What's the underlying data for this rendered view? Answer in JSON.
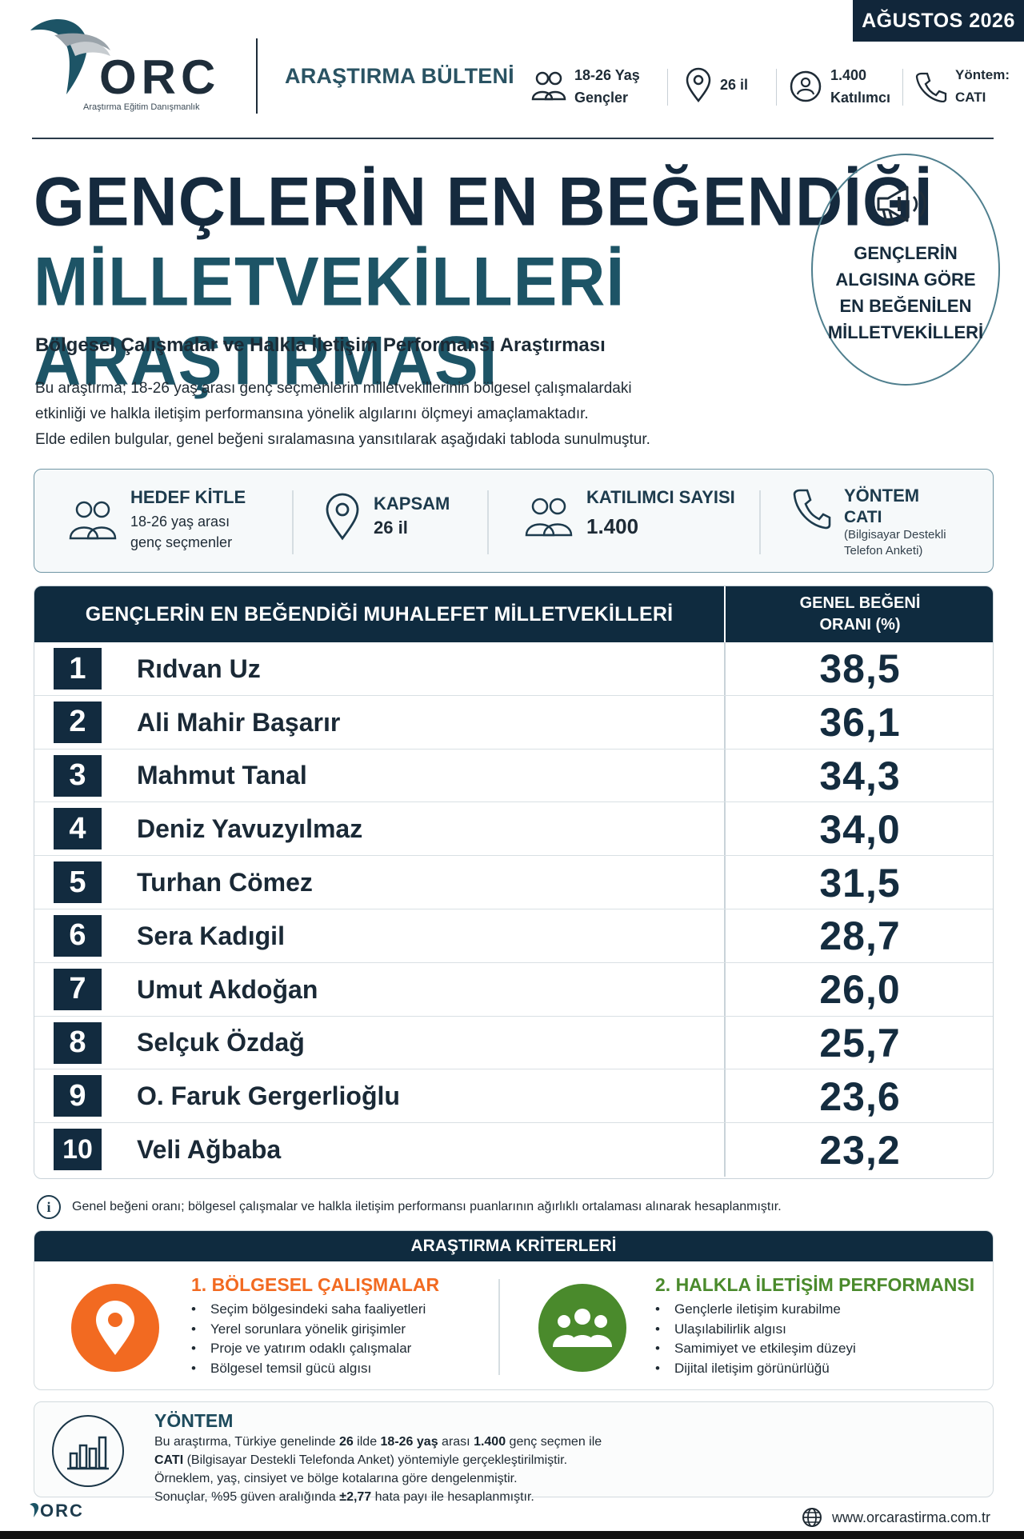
{
  "header": {
    "date_badge": "AĞUSTOS 2026",
    "logo_text": "ORC",
    "logo_tagline": "Araştırma Eğitim Danışmanlık",
    "bulletin": "ARAŞTIRMA BÜLTENİ",
    "info": [
      {
        "icon": "people-icon",
        "line1": "18-26 Yaş",
        "line2": "Gençler"
      },
      {
        "icon": "location-pin-icon",
        "line1": "26 il",
        "line2": ""
      },
      {
        "icon": "participants-icon",
        "line1": "1.400",
        "line2": "Katılımcı"
      },
      {
        "icon": "phone-icon",
        "line1": "Yöntem:",
        "line2": "CATI"
      }
    ]
  },
  "title": {
    "line1": "GENÇLERİN EN BEĞENDİĞİ",
    "line2": "MİLLETVEKİLLERİ ARAŞTIRMASI",
    "subtitle": "Bölgesel Çalışmalar ve Halkla İletişim Performansı Araştırması",
    "intro_lines": [
      "Bu araştırma; 18-26 yaş arası genç seçmenlerin milletvekillerinin bölgesel çalışmalardaki",
      "etkinliği ve halkla iletişim performansına yönelik algılarını ölçmeyi amaçlamaktadır.",
      "Elde edilen bulgular, genel beğeni sıralamasına yansıtılarak aşağıdaki tabloda sunulmuştur."
    ]
  },
  "badge": {
    "icon": "megaphone-icon",
    "lines": [
      "GENÇLERİN",
      "ALGISINA GÖRE",
      "EN BEĞENİLEN",
      "MİLLETVEKİLLERİ"
    ]
  },
  "info_box": {
    "target": {
      "label": "HEDEF KİTLE",
      "line1": "18-26 yaş arası",
      "line2": "genç seçmenler"
    },
    "scope": {
      "label": "KAPSAM",
      "value": "26 il"
    },
    "participants": {
      "label": "KATILIMCI SAYISI",
      "value": "1.400"
    },
    "method": {
      "label": "YÖNTEM",
      "value": "CATI",
      "note1": "(Bilgisayar Destekli",
      "note2": "Telefon Anketi)"
    }
  },
  "table": {
    "col1_header": "GENÇLERİN EN BEĞENDİĞİ MUHALEFET MİLLETVEKİLLERİ",
    "col2_header_line1": "GENEL BEĞENİ",
    "col2_header_line2": "ORANI (%)",
    "rows": [
      {
        "rank": "1",
        "name": "Rıdvan Uz",
        "value": "38,5"
      },
      {
        "rank": "2",
        "name": "Ali Mahir Başarır",
        "value": "36,1"
      },
      {
        "rank": "3",
        "name": "Mahmut Tanal",
        "value": "34,3"
      },
      {
        "rank": "4",
        "name": "Deniz Yavuzyılmaz",
        "value": "34,0"
      },
      {
        "rank": "5",
        "name": "Turhan Cömez",
        "value": "31,5"
      },
      {
        "rank": "6",
        "name": "Sera Kadıgil",
        "value": "28,7"
      },
      {
        "rank": "7",
        "name": "Umut Akdoğan",
        "value": "26,0"
      },
      {
        "rank": "8",
        "name": "Selçuk Özdağ",
        "value": "25,7"
      },
      {
        "rank": "9",
        "name": "O. Faruk Gergerlioğlu",
        "value": "23,6"
      },
      {
        "rank": "10",
        "name": "Veli Ağbaba",
        "value": "23,2"
      }
    ]
  },
  "footnote": "Genel beğeni oranı; bölgesel çalışmalar ve halkla iletişim performansı puanlarının ağırlıklı ortalaması alınarak hesaplanmıştır.",
  "criteria": {
    "header": "ARAŞTIRMA KRİTERLERİ",
    "c1": {
      "title": "1. BÖLGESEL ÇALIŞMALAR",
      "color": "#f26a21",
      "items": [
        "Seçim bölgesindeki saha faaliyetleri",
        "Yerel sorunlara yönelik girişimler",
        "Proje ve yatırım odaklı çalışmalar",
        "Bölgesel temsil gücü algısı"
      ]
    },
    "c2": {
      "title": "2. HALKLA İLETİŞİM PERFORMANSI",
      "color": "#4a8a2c",
      "items": [
        "Gençlerle iletişim kurabilme",
        "Ulaşılabilirlik algısı",
        "Samimiyet ve etkileşim düzeyi",
        "Dijital iletişim görünürlüğü"
      ]
    }
  },
  "method": {
    "title": "YÖNTEM",
    "l1_a": "Bu araştırma, Türkiye genelinde ",
    "l1_b": "26",
    "l1_c": " ilde ",
    "l1_d": "18-26 yaş",
    "l1_e": " arası ",
    "l1_f": "1.400",
    "l1_g": " genç seçmen ile",
    "l2_a": "CATI",
    "l2_b": " (Bilgisayar Destekli Telefonda Anket) yöntemiyle gerçekleştirilmiştir.",
    "l3": "Örneklem, yaş, cinsiyet ve bölge kotalarına göre dengelenmiştir.",
    "l4_a": "Sonuçlar, %95 güven aralığında ",
    "l4_b": "±2,77",
    "l4_c": " hata payı ile hesaplanmıştır."
  },
  "footer": {
    "logo_text": "ORC",
    "url": "www.orcarastirma.com.tr"
  }
}
